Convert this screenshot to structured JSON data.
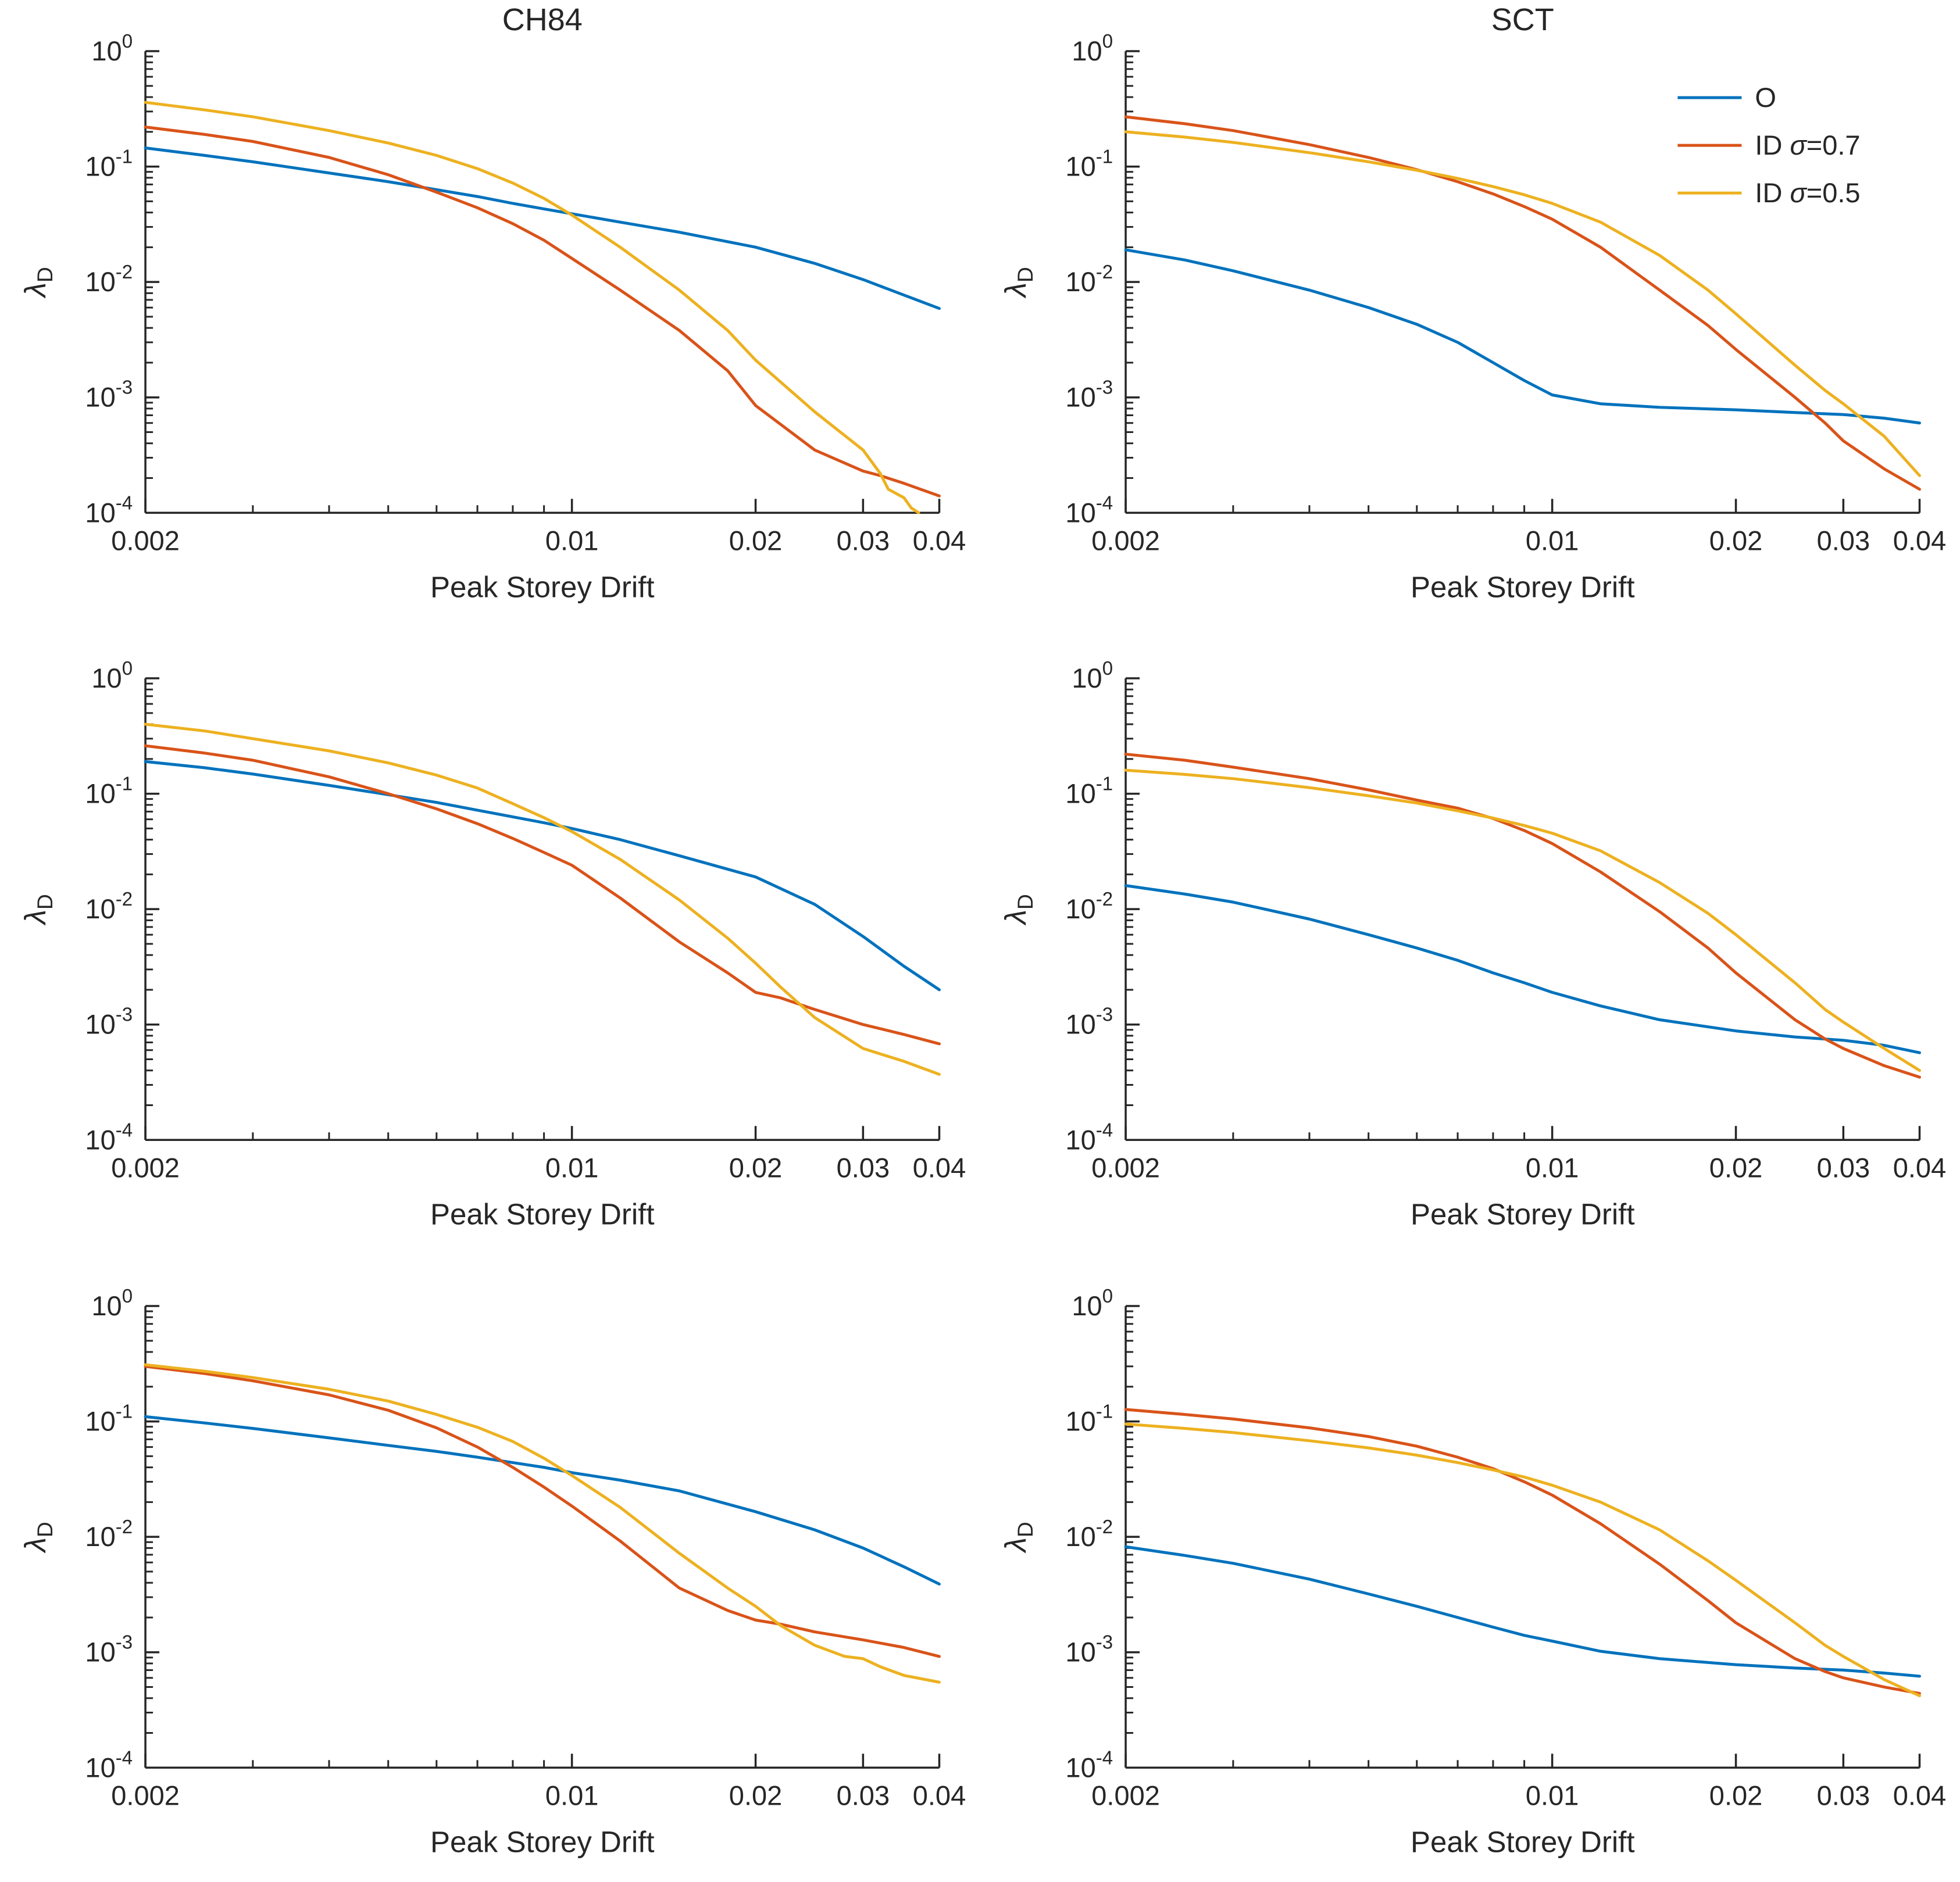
{
  "figure": {
    "background": "#ffffff",
    "axis_color": "#262626",
    "text_color": "#262626",
    "column_titles": [
      "CH84",
      "SCT"
    ],
    "xlabel": "Peak Storey Drift",
    "ylabel_base": "λ",
    "ylabel_sub": "D",
    "xscale": "log",
    "yscale": "log",
    "xlim": [
      0.002,
      0.04
    ],
    "ylim": [
      0.0001,
      1
    ],
    "xtick_values": [
      0.002,
      0.01,
      0.02,
      0.03,
      0.04
    ],
    "xtick_labels": [
      "0.002",
      "0.01",
      "0.02",
      "0.03",
      "0.04"
    ],
    "minor_xticks": [
      0.003,
      0.004,
      0.005,
      0.006,
      0.007,
      0.008,
      0.009
    ],
    "ytick_exponents": [
      0,
      -1,
      -2,
      -3,
      -4
    ],
    "grid": "off",
    "legend": {
      "position": "northeast-inside",
      "items": [
        {
          "label": "O",
          "color": "#0072BD"
        },
        {
          "label": "ID σ=0.7",
          "color": "#D95319"
        },
        {
          "label": "ID σ=0.5",
          "color": "#EDB120"
        }
      ]
    }
  },
  "chart_data": [
    {
      "type": "line",
      "title": "CH84",
      "position": "row1-left",
      "xlabel": "Peak Storey Drift",
      "ylabel": "λ_D",
      "xscale": "log",
      "yscale": "log",
      "xlim": [
        0.002,
        0.04
      ],
      "ylim": [
        0.0001,
        1
      ],
      "show_legend": false,
      "series": [
        {
          "name": "O",
          "color": "#0072BD",
          "x": [
            0.002,
            0.0025,
            0.003,
            0.004,
            0.005,
            0.006,
            0.007,
            0.008,
            0.009,
            0.01,
            0.012,
            0.015,
            0.02,
            0.025,
            0.03,
            0.035,
            0.04
          ],
          "y": [
            0.145,
            0.125,
            0.11,
            0.088,
            0.074,
            0.063,
            0.055,
            0.048,
            0.043,
            0.039,
            0.033,
            0.027,
            0.02,
            0.0145,
            0.0105,
            0.0077,
            0.0059
          ]
        },
        {
          "name": "ID σ=0.7",
          "color": "#D95319",
          "x": [
            0.002,
            0.0025,
            0.003,
            0.004,
            0.005,
            0.006,
            0.007,
            0.008,
            0.009,
            0.01,
            0.012,
            0.015,
            0.018,
            0.02,
            0.025,
            0.03,
            0.032,
            0.035,
            0.04
          ],
          "y": [
            0.22,
            0.19,
            0.165,
            0.12,
            0.085,
            0.06,
            0.044,
            0.032,
            0.023,
            0.016,
            0.0085,
            0.0038,
            0.0017,
            0.00085,
            0.00035,
            0.00023,
            0.00021,
            0.00018,
            0.00014
          ]
        },
        {
          "name": "ID σ=0.5",
          "color": "#EDB120",
          "x": [
            0.002,
            0.0025,
            0.003,
            0.004,
            0.005,
            0.006,
            0.007,
            0.008,
            0.009,
            0.01,
            0.012,
            0.015,
            0.018,
            0.02,
            0.025,
            0.03,
            0.032,
            0.033,
            0.035,
            0.036,
            0.037
          ],
          "y": [
            0.36,
            0.31,
            0.27,
            0.205,
            0.16,
            0.125,
            0.096,
            0.072,
            0.053,
            0.038,
            0.02,
            0.0085,
            0.0038,
            0.0021,
            0.00075,
            0.00035,
            0.00022,
            0.00016,
            0.000135,
            0.00011,
            0.0001
          ]
        }
      ]
    },
    {
      "type": "line",
      "title": "SCT",
      "position": "row1-right",
      "xlabel": "Peak Storey Drift",
      "ylabel": "λ_D",
      "xscale": "log",
      "yscale": "log",
      "xlim": [
        0.002,
        0.04
      ],
      "ylim": [
        0.0001,
        1
      ],
      "show_legend": true,
      "series": [
        {
          "name": "O",
          "color": "#0072BD",
          "x": [
            0.002,
            0.0025,
            0.003,
            0.004,
            0.005,
            0.006,
            0.007,
            0.008,
            0.009,
            0.01,
            0.012,
            0.015,
            0.02,
            0.025,
            0.03,
            0.035,
            0.04
          ],
          "y": [
            0.019,
            0.0155,
            0.0125,
            0.0085,
            0.006,
            0.0043,
            0.003,
            0.002,
            0.0014,
            0.00105,
            0.00088,
            0.00082,
            0.00078,
            0.00074,
            0.00071,
            0.00066,
            0.0006
          ]
        },
        {
          "name": "ID σ=0.7",
          "color": "#D95319",
          "x": [
            0.002,
            0.0025,
            0.003,
            0.004,
            0.005,
            0.006,
            0.007,
            0.008,
            0.009,
            0.01,
            0.012,
            0.015,
            0.018,
            0.02,
            0.025,
            0.028,
            0.03,
            0.035,
            0.04
          ],
          "y": [
            0.27,
            0.235,
            0.205,
            0.155,
            0.12,
            0.094,
            0.074,
            0.058,
            0.045,
            0.035,
            0.02,
            0.0085,
            0.0042,
            0.0026,
            0.001,
            0.0006,
            0.00042,
            0.00024,
            0.00016
          ]
        },
        {
          "name": "ID σ=0.5",
          "color": "#EDB120",
          "x": [
            0.002,
            0.0025,
            0.003,
            0.004,
            0.005,
            0.006,
            0.007,
            0.008,
            0.009,
            0.01,
            0.012,
            0.015,
            0.018,
            0.02,
            0.025,
            0.028,
            0.03,
            0.035,
            0.04
          ],
          "y": [
            0.2,
            0.18,
            0.162,
            0.132,
            0.11,
            0.093,
            0.079,
            0.067,
            0.057,
            0.048,
            0.033,
            0.017,
            0.0085,
            0.0053,
            0.0019,
            0.00115,
            0.00088,
            0.00046,
            0.00021
          ]
        }
      ]
    },
    {
      "type": "line",
      "title": "",
      "position": "row2-left",
      "xlabel": "Peak Storey Drift",
      "ylabel": "λ_D",
      "xscale": "log",
      "yscale": "log",
      "xlim": [
        0.002,
        0.04
      ],
      "ylim": [
        0.0001,
        1
      ],
      "show_legend": false,
      "series": [
        {
          "name": "O",
          "color": "#0072BD",
          "x": [
            0.002,
            0.0025,
            0.003,
            0.004,
            0.005,
            0.006,
            0.007,
            0.008,
            0.009,
            0.01,
            0.012,
            0.015,
            0.02,
            0.025,
            0.03,
            0.035,
            0.04
          ],
          "y": [
            0.19,
            0.168,
            0.148,
            0.118,
            0.098,
            0.084,
            0.072,
            0.063,
            0.056,
            0.05,
            0.04,
            0.029,
            0.019,
            0.011,
            0.0058,
            0.0032,
            0.002
          ]
        },
        {
          "name": "ID σ=0.7",
          "color": "#D95319",
          "x": [
            0.002,
            0.0025,
            0.003,
            0.004,
            0.005,
            0.006,
            0.007,
            0.008,
            0.009,
            0.01,
            0.012,
            0.015,
            0.018,
            0.02,
            0.022,
            0.025,
            0.03,
            0.035,
            0.04
          ],
          "y": [
            0.26,
            0.225,
            0.195,
            0.14,
            0.1,
            0.074,
            0.055,
            0.041,
            0.031,
            0.024,
            0.0125,
            0.0052,
            0.0028,
            0.0019,
            0.0017,
            0.00135,
            0.001,
            0.00082,
            0.00068
          ]
        },
        {
          "name": "ID σ=0.5",
          "color": "#EDB120",
          "x": [
            0.002,
            0.0025,
            0.003,
            0.004,
            0.005,
            0.006,
            0.007,
            0.008,
            0.009,
            0.01,
            0.012,
            0.015,
            0.018,
            0.02,
            0.022,
            0.025,
            0.03,
            0.035,
            0.04
          ],
          "y": [
            0.4,
            0.35,
            0.3,
            0.235,
            0.185,
            0.145,
            0.112,
            0.082,
            0.062,
            0.047,
            0.027,
            0.012,
            0.0056,
            0.0034,
            0.0021,
            0.00115,
            0.00062,
            0.00048,
            0.00037
          ]
        }
      ]
    },
    {
      "type": "line",
      "title": "",
      "position": "row2-right",
      "xlabel": "Peak Storey Drift",
      "ylabel": "λ_D",
      "xscale": "log",
      "yscale": "log",
      "xlim": [
        0.002,
        0.04
      ],
      "ylim": [
        0.0001,
        1
      ],
      "show_legend": false,
      "series": [
        {
          "name": "O",
          "color": "#0072BD",
          "x": [
            0.002,
            0.0025,
            0.003,
            0.004,
            0.005,
            0.006,
            0.007,
            0.008,
            0.009,
            0.01,
            0.012,
            0.015,
            0.02,
            0.025,
            0.03,
            0.035,
            0.04
          ],
          "y": [
            0.016,
            0.0135,
            0.0115,
            0.0082,
            0.006,
            0.0046,
            0.0036,
            0.0028,
            0.0023,
            0.0019,
            0.00145,
            0.0011,
            0.00088,
            0.00078,
            0.00073,
            0.00066,
            0.00057
          ]
        },
        {
          "name": "ID σ=0.7",
          "color": "#D95319",
          "x": [
            0.002,
            0.0025,
            0.003,
            0.004,
            0.005,
            0.006,
            0.007,
            0.008,
            0.009,
            0.01,
            0.012,
            0.015,
            0.018,
            0.02,
            0.025,
            0.028,
            0.03,
            0.035,
            0.04
          ],
          "y": [
            0.22,
            0.195,
            0.17,
            0.135,
            0.108,
            0.088,
            0.075,
            0.061,
            0.048,
            0.037,
            0.021,
            0.0095,
            0.0046,
            0.0028,
            0.0011,
            0.00075,
            0.00062,
            0.00044,
            0.00035
          ]
        },
        {
          "name": "ID σ=0.5",
          "color": "#EDB120",
          "x": [
            0.002,
            0.0025,
            0.003,
            0.004,
            0.005,
            0.006,
            0.007,
            0.008,
            0.009,
            0.01,
            0.012,
            0.015,
            0.018,
            0.02,
            0.025,
            0.028,
            0.03,
            0.035,
            0.04
          ],
          "y": [
            0.16,
            0.147,
            0.135,
            0.113,
            0.096,
            0.083,
            0.071,
            0.0615,
            0.053,
            0.0455,
            0.032,
            0.017,
            0.0092,
            0.006,
            0.0023,
            0.00135,
            0.00105,
            0.00062,
            0.0004
          ]
        }
      ]
    },
    {
      "type": "line",
      "title": "",
      "position": "row3-left",
      "xlabel": "Peak Storey Drift",
      "ylabel": "λ_D",
      "xscale": "log",
      "yscale": "log",
      "xlim": [
        0.002,
        0.04
      ],
      "ylim": [
        0.0001,
        1
      ],
      "show_legend": false,
      "series": [
        {
          "name": "O",
          "color": "#0072BD",
          "x": [
            0.002,
            0.0025,
            0.003,
            0.004,
            0.005,
            0.006,
            0.007,
            0.008,
            0.009,
            0.01,
            0.012,
            0.015,
            0.02,
            0.025,
            0.03,
            0.035,
            0.04
          ],
          "y": [
            0.11,
            0.097,
            0.087,
            0.072,
            0.062,
            0.055,
            0.049,
            0.044,
            0.04,
            0.036,
            0.031,
            0.025,
            0.0165,
            0.0115,
            0.008,
            0.0055,
            0.0039
          ]
        },
        {
          "name": "ID σ=0.7",
          "color": "#D95319",
          "x": [
            0.002,
            0.0025,
            0.003,
            0.004,
            0.005,
            0.006,
            0.007,
            0.008,
            0.009,
            0.01,
            0.012,
            0.015,
            0.018,
            0.02,
            0.022,
            0.025,
            0.03,
            0.035,
            0.04
          ],
          "y": [
            0.3,
            0.26,
            0.225,
            0.17,
            0.125,
            0.088,
            0.06,
            0.04,
            0.027,
            0.0185,
            0.0092,
            0.0036,
            0.0023,
            0.0019,
            0.00175,
            0.0015,
            0.00128,
            0.0011,
            0.00092
          ]
        },
        {
          "name": "ID σ=0.5",
          "color": "#EDB120",
          "x": [
            0.002,
            0.0025,
            0.003,
            0.004,
            0.005,
            0.006,
            0.007,
            0.008,
            0.009,
            0.01,
            0.012,
            0.015,
            0.018,
            0.02,
            0.022,
            0.025,
            0.028,
            0.03,
            0.032,
            0.035,
            0.04
          ],
          "y": [
            0.31,
            0.272,
            0.24,
            0.19,
            0.15,
            0.115,
            0.089,
            0.067,
            0.048,
            0.034,
            0.018,
            0.0072,
            0.0036,
            0.0025,
            0.0017,
            0.00115,
            0.00092,
            0.00088,
            0.00075,
            0.00063,
            0.00055
          ]
        }
      ]
    },
    {
      "type": "line",
      "title": "",
      "position": "row3-right",
      "xlabel": "Peak Storey Drift",
      "ylabel": "λ_D",
      "xscale": "log",
      "yscale": "log",
      "xlim": [
        0.002,
        0.04
      ],
      "ylim": [
        0.0001,
        1
      ],
      "show_legend": false,
      "series": [
        {
          "name": "O",
          "color": "#0072BD",
          "x": [
            0.002,
            0.0025,
            0.003,
            0.004,
            0.005,
            0.006,
            0.007,
            0.008,
            0.009,
            0.01,
            0.012,
            0.015,
            0.02,
            0.025,
            0.03,
            0.035,
            0.04
          ],
          "y": [
            0.0082,
            0.0069,
            0.0059,
            0.0043,
            0.0032,
            0.0025,
            0.002,
            0.00165,
            0.0014,
            0.00125,
            0.00102,
            0.00088,
            0.00078,
            0.00073,
            0.0007,
            0.00066,
            0.00062
          ]
        },
        {
          "name": "ID σ=0.7",
          "color": "#D95319",
          "x": [
            0.002,
            0.0025,
            0.003,
            0.004,
            0.005,
            0.006,
            0.007,
            0.008,
            0.009,
            0.01,
            0.012,
            0.015,
            0.018,
            0.02,
            0.025,
            0.028,
            0.03,
            0.035,
            0.04
          ],
          "y": [
            0.127,
            0.115,
            0.105,
            0.088,
            0.074,
            0.061,
            0.049,
            0.039,
            0.03,
            0.023,
            0.013,
            0.0058,
            0.0028,
            0.0018,
            0.00088,
            0.00068,
            0.0006,
            0.0005,
            0.00044
          ]
        },
        {
          "name": "ID σ=0.5",
          "color": "#EDB120",
          "x": [
            0.002,
            0.0025,
            0.003,
            0.004,
            0.005,
            0.006,
            0.007,
            0.008,
            0.009,
            0.01,
            0.012,
            0.015,
            0.018,
            0.02,
            0.025,
            0.028,
            0.03,
            0.035,
            0.04
          ],
          "y": [
            0.095,
            0.087,
            0.08,
            0.068,
            0.059,
            0.051,
            0.044,
            0.038,
            0.033,
            0.028,
            0.02,
            0.0115,
            0.0062,
            0.0042,
            0.0018,
            0.00115,
            0.00092,
            0.00058,
            0.00042
          ]
        }
      ]
    }
  ]
}
